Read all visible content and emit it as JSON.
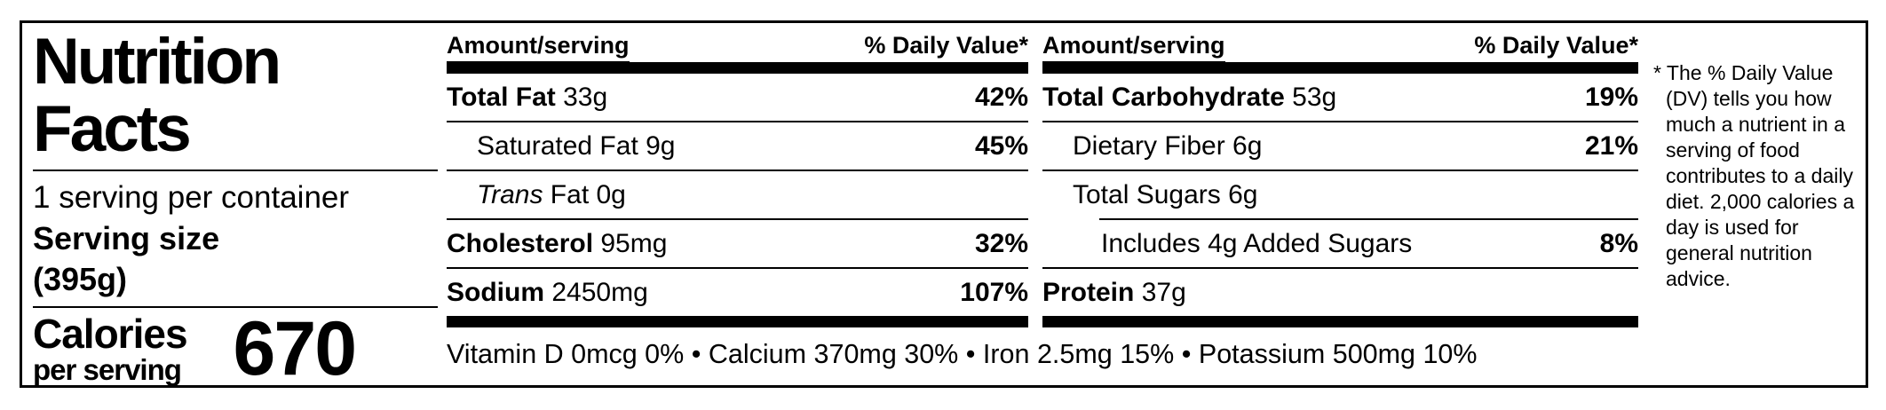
{
  "colors": {
    "text": "#000000",
    "background": "#ffffff",
    "bars": "#000000"
  },
  "header_panel": {
    "title_line1": "Nutrition",
    "title_line2": "Facts",
    "servings_per_container": "1 serving per container",
    "serving_size_label": "Serving size",
    "serving_size_value": "(395g)",
    "calories_label": "Calories",
    "calories_sublabel": "per serving",
    "calories_value": "670"
  },
  "columns": [
    {
      "header_amount": "Amount/serving",
      "header_dv": "% Daily Value*",
      "rows": [
        {
          "name": "Total Fat",
          "bold_name": true,
          "amount": "33g",
          "dv": "42%",
          "indent": 0,
          "divider_above": "none"
        },
        {
          "name": "Saturated Fat",
          "bold_name": false,
          "amount": "9g",
          "dv": "45%",
          "indent": 1,
          "divider_above": "full"
        },
        {
          "name": "Trans",
          "italic_name": true,
          "name2": "Fat",
          "bold_name": false,
          "amount": "0g",
          "dv": "",
          "indent": 1,
          "divider_above": "full"
        },
        {
          "name": "Cholesterol",
          "bold_name": true,
          "amount": "95mg",
          "dv": "32%",
          "indent": 0,
          "divider_above": "full"
        },
        {
          "name": "Sodium",
          "bold_name": true,
          "amount": "2450mg",
          "dv": "107%",
          "indent": 0,
          "divider_above": "full"
        }
      ]
    },
    {
      "header_amount": "Amount/serving",
      "header_dv": "% Daily Value*",
      "rows": [
        {
          "name": "Total Carbohydrate",
          "bold_name": true,
          "amount": "53g",
          "dv": "19%",
          "indent": 0,
          "divider_above": "none"
        },
        {
          "name": "Dietary Fiber",
          "bold_name": false,
          "amount": "6g",
          "dv": "21%",
          "indent": 1,
          "divider_above": "full"
        },
        {
          "name": "Total Sugars",
          "bold_name": false,
          "amount": "6g",
          "dv": "",
          "indent": 1,
          "divider_above": "full"
        },
        {
          "name": "Includes 4g Added Sugars",
          "bold_name": false,
          "amount": "",
          "dv": "8%",
          "indent": 2,
          "divider_above": "indent"
        },
        {
          "name": "Protein",
          "bold_name": true,
          "amount": "37g",
          "dv": "",
          "indent": 0,
          "divider_above": "full"
        }
      ]
    }
  ],
  "micronutrients": {
    "separator": "•",
    "items": [
      "Vitamin D 0mcg 0%",
      "Calcium 370mg 30%",
      "Iron 2.5mg 15%",
      "Potassium 500mg 10%"
    ]
  },
  "footnote": "* The % Daily Value (DV) tells you how much a nutrient in a serving of food contributes to a daily diet. 2,000 calories a day is used for general nutrition advice."
}
